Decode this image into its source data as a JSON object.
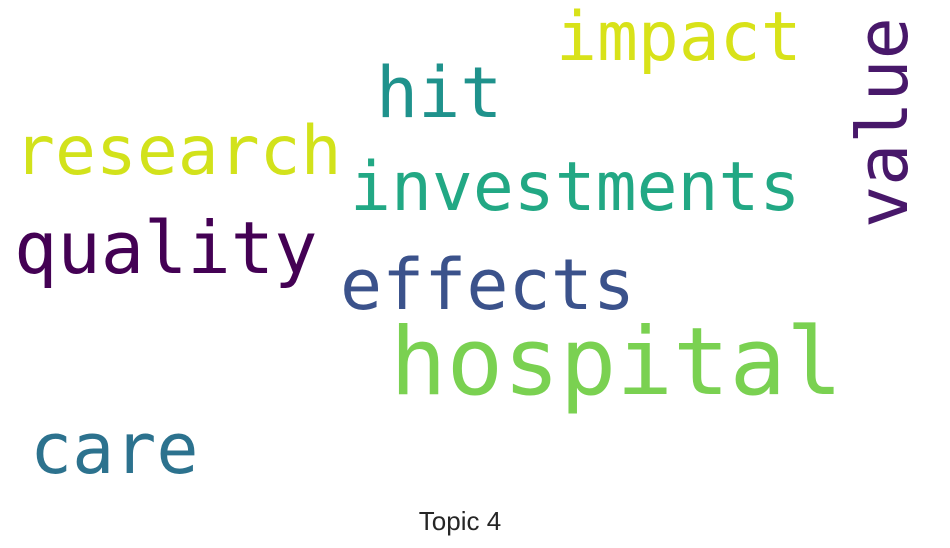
{
  "title": "Topic 4",
  "words": [
    {
      "id": "hospital",
      "text": "hospital",
      "color": "#7ad151"
    },
    {
      "id": "investments",
      "text": "investments",
      "color": "#22a884"
    },
    {
      "id": "research",
      "text": "research",
      "color": "#d2e21b"
    },
    {
      "id": "quality",
      "text": "quality",
      "color": "#440154"
    },
    {
      "id": "effects",
      "text": "effects",
      "color": "#3b528b"
    },
    {
      "id": "impact",
      "text": "impact",
      "color": "#d8e219"
    },
    {
      "id": "hit",
      "text": "hit",
      "color": "#1f928c"
    },
    {
      "id": "care",
      "text": "care",
      "color": "#2c728e"
    },
    {
      "id": "value",
      "text": "value",
      "color": "#48186a",
      "orientation": "vertical"
    }
  ]
}
